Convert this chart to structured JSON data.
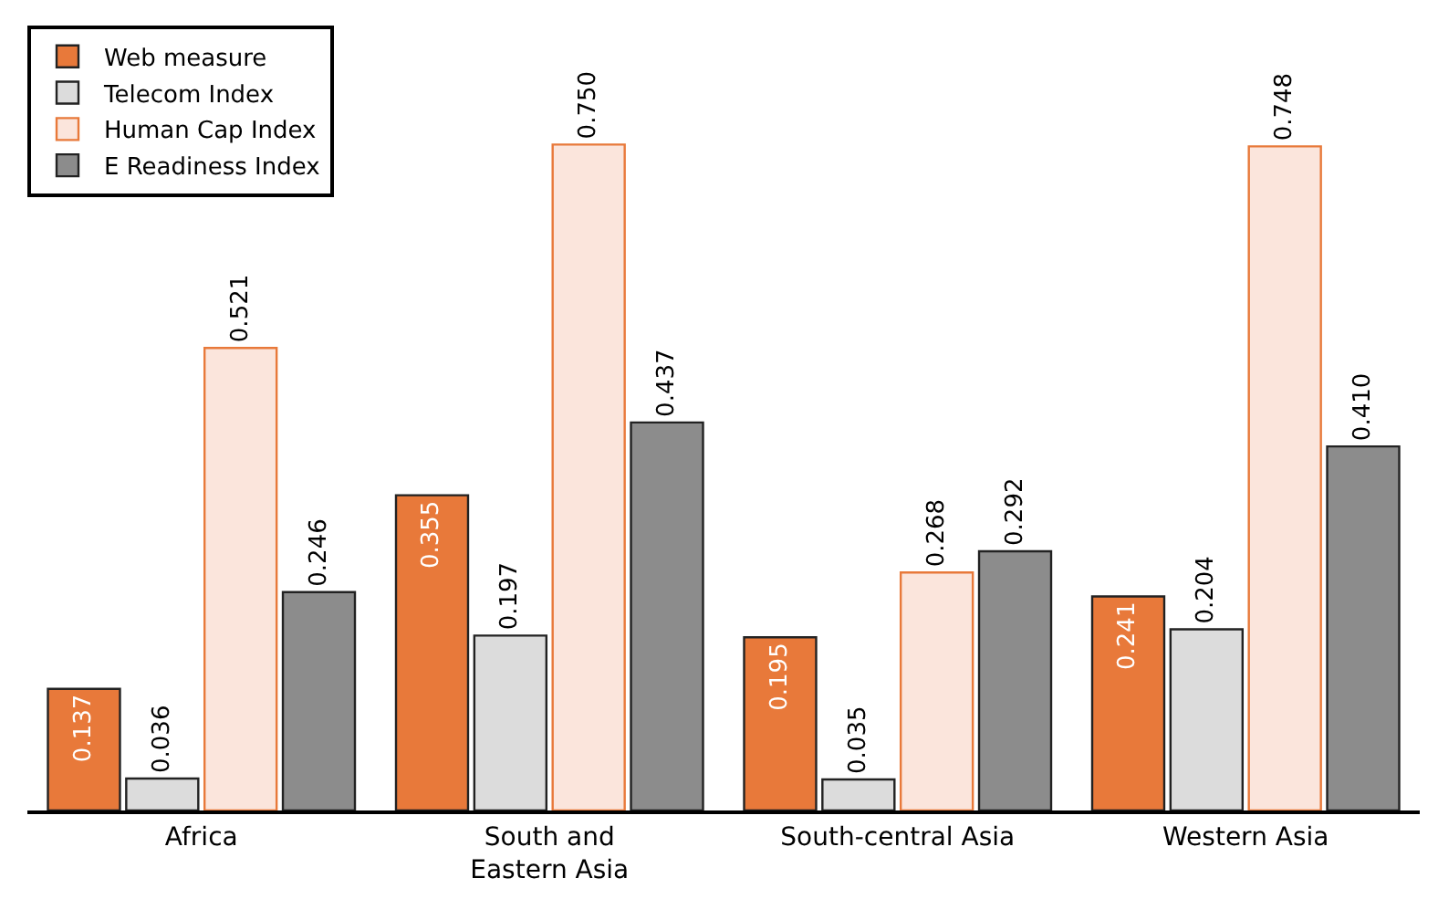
{
  "chart_data": {
    "type": "bar",
    "categories": [
      "Africa",
      "South and\nEastern Asia",
      "South-central Asia",
      "Western Asia"
    ],
    "series": [
      {
        "name": "Web measure",
        "color": "#e8793a",
        "values": [
          0.137,
          0.355,
          0.195,
          0.241
        ],
        "value_labels": [
          "0.137",
          "0.355",
          "0.195",
          "0.241"
        ]
      },
      {
        "name": "Telecom Index",
        "color": "#dcdcdc",
        "values": [
          0.036,
          0.197,
          0.035,
          0.204
        ],
        "value_labels": [
          "0.036",
          "0.197",
          "0.035",
          "0.204"
        ]
      },
      {
        "name": "Human Cap Index",
        "color": "#fbe5dc",
        "values": [
          0.521,
          0.75,
          0.268,
          0.748
        ],
        "value_labels": [
          "0.521",
          "0.750",
          "0.268",
          "0.748"
        ]
      },
      {
        "name": "E Readiness Index",
        "color": "#8c8c8c",
        "values": [
          0.246,
          0.437,
          0.292,
          0.41
        ],
        "value_labels": [
          "0.246",
          "0.437",
          "0.292",
          "0.410"
        ]
      }
    ],
    "legend": "top left"
  }
}
